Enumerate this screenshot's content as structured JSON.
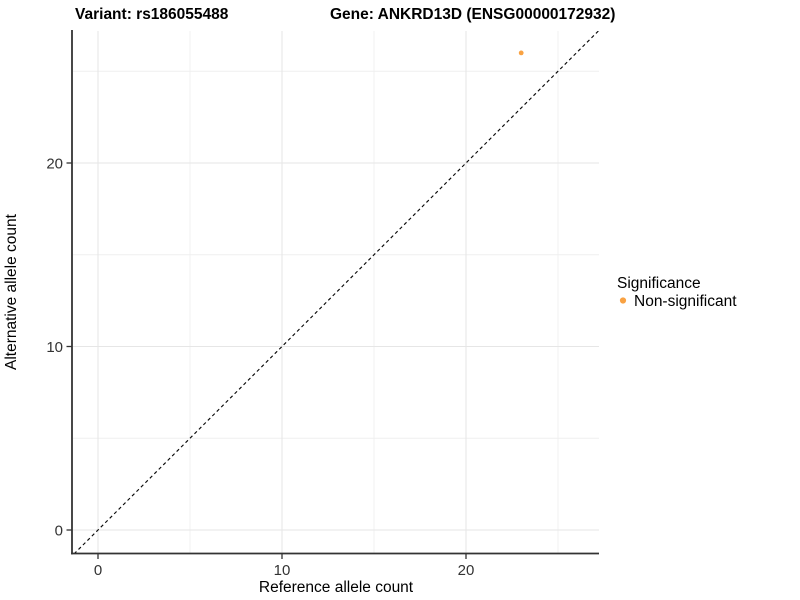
{
  "title": {
    "variant": "Variant: rs186055488",
    "gene": "Gene: ANKRD13D (ENSG00000172932)"
  },
  "axes": {
    "x": {
      "label": "Reference allele count",
      "major_ticks": [
        0,
        10,
        20
      ],
      "minor_ticks": [
        5,
        15,
        25
      ],
      "range": [
        -1.36,
        27.23
      ]
    },
    "y": {
      "label": "Alternative allele count",
      "major_ticks": [
        0,
        10,
        20
      ],
      "minor_ticks": [
        5,
        15,
        25
      ],
      "range": [
        -1.25,
        27.19
      ]
    }
  },
  "legend": {
    "title": "Significance",
    "items": [
      {
        "label": "Non-significant",
        "color": "#F9A242"
      }
    ]
  },
  "colors": {
    "point": "#F9A242",
    "axis_line": "#333333",
    "grid_major": "#E6E6E6",
    "grid_minor": "#EFEFEF",
    "reference_line": "#0a0a0a",
    "background": "#ffffff"
  },
  "chart_data": {
    "type": "scatter",
    "title": "Variant: rs186055488    Gene: ANKRD13D (ENSG00000172932)",
    "xlabel": "Reference allele count",
    "ylabel": "Alternative allele count",
    "x_ticks": [
      0,
      10,
      20
    ],
    "y_ticks": [
      0,
      10,
      20
    ],
    "x_minor_ticks": [
      5,
      15,
      25
    ],
    "y_minor_ticks": [
      5,
      15,
      25
    ],
    "xlim": [
      -1.36,
      27.23
    ],
    "ylim": [
      -1.25,
      27.19
    ],
    "grid": true,
    "legend_position": "right",
    "legend_title": "Significance",
    "series": [
      {
        "name": "Non-significant",
        "color": "#F9A242",
        "points": [
          {
            "x": 23,
            "y": 26
          }
        ]
      }
    ],
    "reference_line": {
      "type": "identity",
      "slope": 1,
      "intercept": 0,
      "style": "dashed",
      "color": "#0a0a0a"
    }
  }
}
